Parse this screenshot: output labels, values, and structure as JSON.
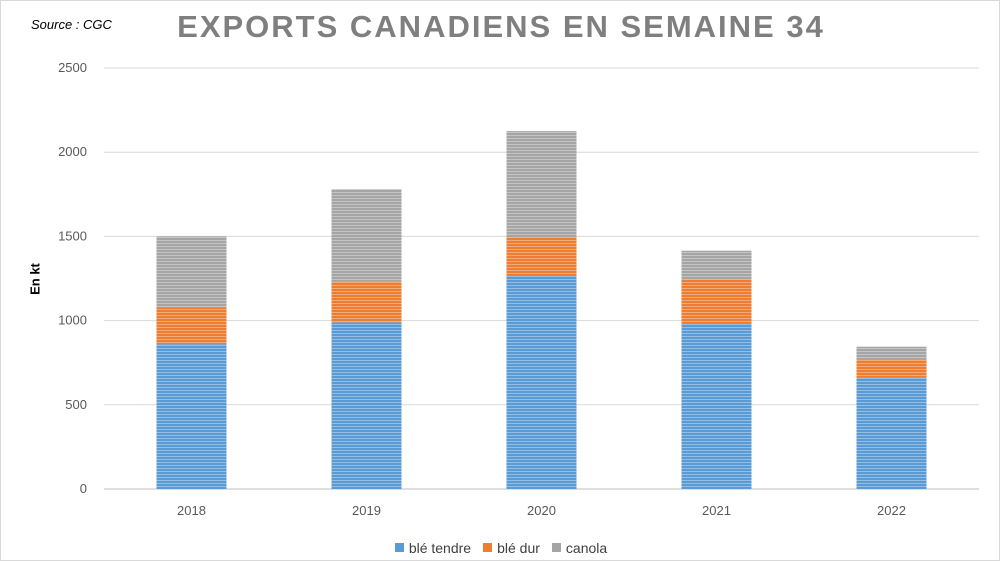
{
  "source": "Source : CGC",
  "chart_data": {
    "type": "bar",
    "stacked": true,
    "title": "EXPORTS CANADIENS EN SEMAINE 34",
    "xlabel": "",
    "ylabel": "En kt",
    "ylim": [
      0,
      2500
    ],
    "yticks": [
      0,
      500,
      1000,
      1500,
      2000,
      2500
    ],
    "grid": true,
    "legend_position": "bottom",
    "categories": [
      "2018",
      "2019",
      "2020",
      "2021",
      "2022"
    ],
    "series": [
      {
        "name": "blé tendre",
        "color": "#5b9bd5",
        "values": [
          860,
          990,
          1265,
          980,
          660
        ]
      },
      {
        "name": "blé dur",
        "color": "#ed7d31",
        "values": [
          220,
          240,
          230,
          265,
          110
        ]
      },
      {
        "name": "canola",
        "color": "#a5a5a5",
        "values": [
          420,
          550,
          630,
          170,
          75
        ]
      }
    ]
  }
}
